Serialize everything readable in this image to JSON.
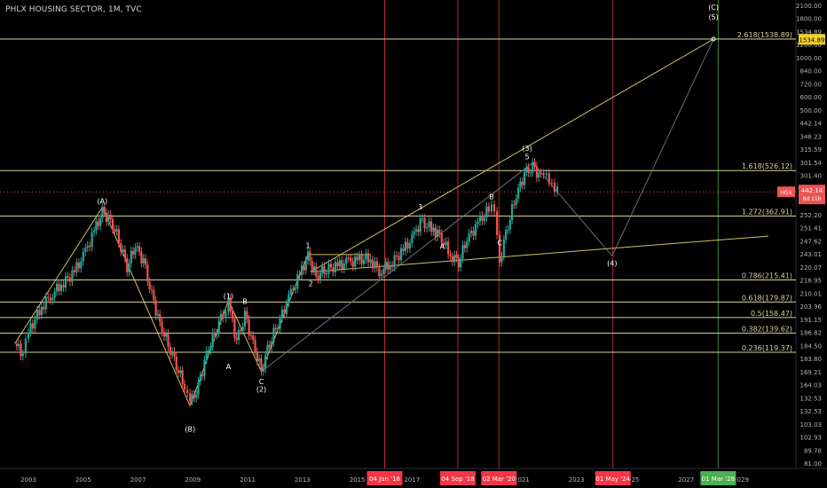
{
  "header": {
    "title": "PHLX HOUSING SECTOR, 1M, TVC"
  },
  "chart_data": {
    "type": "candlestick",
    "symbol": "HGX",
    "x_ticks": [
      "2003",
      "2005",
      "2007",
      "2009",
      "2011",
      "2013",
      "2015",
      "2017",
      "2019",
      "2021",
      "2023",
      "2025",
      "2027",
      "2029"
    ],
    "x_tick_years": [
      2003,
      2005,
      2007,
      2009,
      2011,
      2013,
      2015,
      2017,
      2019,
      2021,
      2023,
      2025,
      2027,
      2029
    ],
    "y_ticks": [
      "2100.00",
      "1800.00",
      "1534.89",
      "1200.00",
      "1000.00",
      "840.00",
      "720.00",
      "600.00",
      "500.00",
      "442.14",
      "348.23",
      "315.59",
      "301.54",
      "301.40",
      "293.66",
      "253.63",
      "252.20",
      "251.41",
      "247.62",
      "243.01",
      "220.07",
      "216.95",
      "210.01",
      "203.96",
      "191.15",
      "186.82",
      "184.50",
      "183.80",
      "169.21",
      "164.03",
      "132.53",
      "132.53",
      "103.03",
      "102.93",
      "89.78",
      "81.00"
    ],
    "fib_levels": [
      {
        "label": "2.618(1538.89)",
        "value": 1538.89
      },
      {
        "label": "1.618(526.12)",
        "value": 526.12
      },
      {
        "label": "1.272(362.91)",
        "value": 362.91
      },
      {
        "label": "0.786(215.41)",
        "value": 215.41
      },
      {
        "label": "0.618(179.87)",
        "value": 179.87
      },
      {
        "label": "0.5(158.47)",
        "value": 158.47
      },
      {
        "label": "0.382(139.62)",
        "value": 139.62
      },
      {
        "label": "0.236(119.37)",
        "value": 119.37
      }
    ],
    "price_tag": {
      "symbol": "HGX",
      "price": "442.14",
      "countdown": "8d 11h",
      "value": 442.14
    },
    "target_tag": {
      "label": "1534.89",
      "value": 1534.89
    },
    "date_markers": [
      {
        "label": "04 Jan '16",
        "t": 2016.0,
        "color": "#f23645"
      },
      {
        "label": "04 Sep '18",
        "t": 2018.67,
        "color": "#f23645"
      },
      {
        "label": "02 Mar '20",
        "t": 2020.17,
        "color": "#f23645"
      },
      {
        "label": "01 May '24",
        "t": 2024.33,
        "color": "#f23645"
      },
      {
        "label": "01 Mar '28",
        "t": 2028.17,
        "color": "#4caf50"
      }
    ],
    "wave_labels": [
      {
        "text": "(A)",
        "t": 2005.7,
        "v": 390,
        "pos": "above"
      },
      {
        "text": "(B)",
        "t": 2008.9,
        "v": 67,
        "pos": "below"
      },
      {
        "text": "(1)",
        "t": 2010.3,
        "v": 180,
        "pos": "above"
      },
      {
        "text": "A",
        "t": 2010.3,
        "v": 112,
        "pos": "below"
      },
      {
        "text": "B",
        "t": 2010.9,
        "v": 172,
        "pos": "above"
      },
      {
        "text": "C",
        "t": 2011.5,
        "v": 99,
        "pos": "below"
      },
      {
        "text": "(2)",
        "t": 2011.5,
        "v": 93,
        "pos": "below"
      },
      {
        "text": "1",
        "t": 2013.2,
        "v": 272,
        "pos": "above"
      },
      {
        "text": "2",
        "t": 2013.3,
        "v": 220,
        "pos": "below"
      },
      {
        "text": "3",
        "t": 2017.3,
        "v": 372,
        "pos": "above"
      },
      {
        "text": "A",
        "t": 2018.1,
        "v": 298,
        "pos": "below"
      },
      {
        "text": "B",
        "t": 2019.9,
        "v": 405,
        "pos": "above"
      },
      {
        "text": "C",
        "t": 2020.2,
        "v": 307,
        "pos": "below"
      },
      {
        "text": "(3)",
        "t": 2021.2,
        "v": 600,
        "pos": "above"
      },
      {
        "text": "5",
        "t": 2021.2,
        "v": 560,
        "pos": "above"
      },
      {
        "text": "(4)",
        "t": 2024.3,
        "v": 260,
        "pos": "below"
      },
      {
        "text": "(C)",
        "t": 2028.0,
        "v": 1900,
        "pos": "above"
      },
      {
        "text": "(5)",
        "t": 2028.0,
        "v": 1750,
        "pos": "above"
      }
    ],
    "trendlines": [
      {
        "from": [
          2013.3,
          230
        ],
        "to": [
          2028.0,
          1538
        ],
        "color": "#e6d96a"
      },
      {
        "from": [
          2013.3,
          230
        ],
        "to": [
          2030.0,
          308
        ],
        "color": "#e6d96a"
      },
      {
        "from": [
          2002.5,
          128
        ],
        "to": [
          2005.7,
          390
        ],
        "color": "#e6d96a"
      },
      {
        "from": [
          2005.7,
          390
        ],
        "to": [
          2008.9,
          77
        ],
        "color": "#e6d96a"
      },
      {
        "from": [
          2008.9,
          77
        ],
        "to": [
          2010.3,
          182
        ],
        "color": "#e6d96a"
      },
      {
        "from": [
          2010.3,
          182
        ],
        "to": [
          2011.5,
          102
        ],
        "color": "#e6d96a"
      },
      {
        "from": [
          2011.5,
          102
        ],
        "to": [
          2013.2,
          265
        ],
        "color": "#e6d96a"
      },
      {
        "from": [
          2013.2,
          265
        ],
        "to": [
          2015.5,
          265
        ],
        "color": "#e6d96a"
      },
      {
        "from": [
          2021.4,
          560
        ],
        "to": [
          2024.3,
          262
        ],
        "color": "#787b86"
      },
      {
        "from": [
          2024.3,
          262
        ],
        "to": [
          2028.0,
          1538
        ],
        "color": "#787b86"
      },
      {
        "from": [
          2011.5,
          102
        ],
        "to": [
          2021.4,
          560
        ],
        "color": "#787b86"
      }
    ],
    "series": [
      {
        "t": 2002.5,
        "v": 128
      },
      {
        "t": 2002.8,
        "v": 118
      },
      {
        "t": 2003.0,
        "v": 140
      },
      {
        "t": 2003.4,
        "v": 168
      },
      {
        "t": 2003.8,
        "v": 190
      },
      {
        "t": 2004.2,
        "v": 208
      },
      {
        "t": 2004.6,
        "v": 225
      },
      {
        "t": 2005.0,
        "v": 260
      },
      {
        "t": 2005.4,
        "v": 320
      },
      {
        "t": 2005.7,
        "v": 375
      },
      {
        "t": 2006.0,
        "v": 350
      },
      {
        "t": 2006.3,
        "v": 300
      },
      {
        "t": 2006.6,
        "v": 240
      },
      {
        "t": 2006.9,
        "v": 285
      },
      {
        "t": 2007.2,
        "v": 250
      },
      {
        "t": 2007.5,
        "v": 190
      },
      {
        "t": 2007.8,
        "v": 150
      },
      {
        "t": 2008.1,
        "v": 128
      },
      {
        "t": 2008.4,
        "v": 108
      },
      {
        "t": 2008.7,
        "v": 90
      },
      {
        "t": 2008.9,
        "v": 78
      },
      {
        "t": 2009.2,
        "v": 90
      },
      {
        "t": 2009.5,
        "v": 118
      },
      {
        "t": 2009.8,
        "v": 140
      },
      {
        "t": 2010.1,
        "v": 165
      },
      {
        "t": 2010.3,
        "v": 178
      },
      {
        "t": 2010.6,
        "v": 130
      },
      {
        "t": 2010.9,
        "v": 160
      },
      {
        "t": 2011.2,
        "v": 128
      },
      {
        "t": 2011.5,
        "v": 103
      },
      {
        "t": 2011.8,
        "v": 130
      },
      {
        "t": 2012.1,
        "v": 150
      },
      {
        "t": 2012.5,
        "v": 185
      },
      {
        "t": 2012.9,
        "v": 225
      },
      {
        "t": 2013.2,
        "v": 262
      },
      {
        "t": 2013.5,
        "v": 222
      },
      {
        "t": 2013.8,
        "v": 235
      },
      {
        "t": 2014.2,
        "v": 240
      },
      {
        "t": 2014.6,
        "v": 248
      },
      {
        "t": 2015.0,
        "v": 252
      },
      {
        "t": 2015.4,
        "v": 258
      },
      {
        "t": 2015.8,
        "v": 232
      },
      {
        "t": 2016.2,
        "v": 245
      },
      {
        "t": 2016.6,
        "v": 270
      },
      {
        "t": 2017.0,
        "v": 300
      },
      {
        "t": 2017.3,
        "v": 345
      },
      {
        "t": 2017.7,
        "v": 330
      },
      {
        "t": 2018.0,
        "v": 310
      },
      {
        "t": 2018.4,
        "v": 265
      },
      {
        "t": 2018.7,
        "v": 250
      },
      {
        "t": 2019.0,
        "v": 300
      },
      {
        "t": 2019.4,
        "v": 340
      },
      {
        "t": 2019.8,
        "v": 385
      },
      {
        "t": 2020.0,
        "v": 395
      },
      {
        "t": 2020.2,
        "v": 255
      },
      {
        "t": 2020.5,
        "v": 340
      },
      {
        "t": 2020.8,
        "v": 430
      },
      {
        "t": 2021.1,
        "v": 510
      },
      {
        "t": 2021.4,
        "v": 540
      },
      {
        "t": 2021.7,
        "v": 500
      },
      {
        "t": 2021.9,
        "v": 530
      },
      {
        "t": 2022.1,
        "v": 470
      },
      {
        "t": 2022.3,
        "v": 442
      }
    ]
  },
  "colors": {
    "up": "#26a69a",
    "down": "#ef5350",
    "fib": "#d7d1a0",
    "trend": "#e6d96a",
    "background": "#000000",
    "axis_text": "#b2b5be",
    "marker_red": "#f23645",
    "marker_green": "#4caf50"
  }
}
